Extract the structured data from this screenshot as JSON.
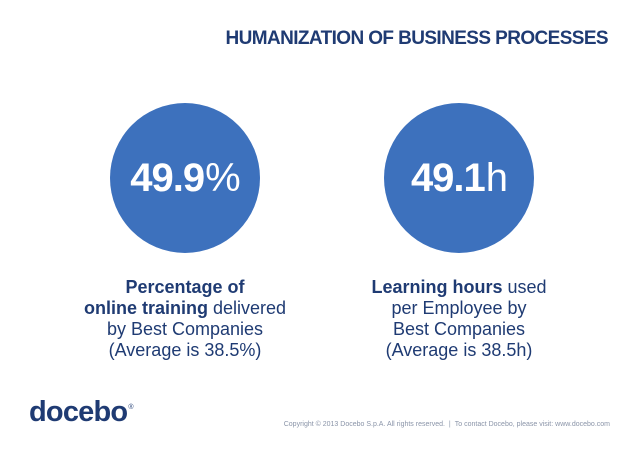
{
  "title": "HUMANIZATION OF BUSINESS PROCESSES",
  "stats": [
    {
      "value": "49.9",
      "unit": "%",
      "line1_bold": "Percentage of",
      "line2_bold": "online training",
      "line2_rest": " delivered",
      "line3": "by Best Companies",
      "line4": "(Average is 38.5%)"
    },
    {
      "value": "49.1",
      "unit": "h",
      "line1_bold": "Learning hours",
      "line1_rest": " used",
      "line2": "per Employee by",
      "line3": "Best Companies",
      "line4": "(Average is 38.5h)"
    }
  ],
  "logo": {
    "text": "docebo",
    "mark": "®"
  },
  "footer": {
    "copyright": "Copyright © 2013 Docebo S.p.A. All rights reserved.",
    "separator": "|",
    "contact": "To contact Docebo, please visit: www.docebo.com"
  },
  "colors": {
    "circle": "#3d71bd",
    "heading": "#1f3b73",
    "footer": "#8a94a8"
  }
}
